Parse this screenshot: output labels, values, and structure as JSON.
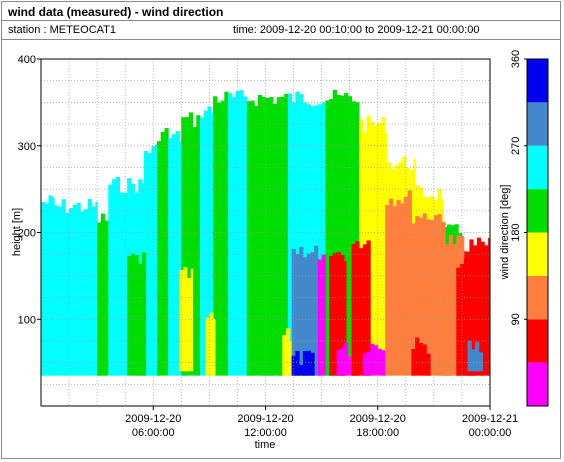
{
  "header": {
    "title": "wind data (measured) - wind direction",
    "station": "station : METEOCAT1",
    "time_range": "time: 2009-12-20 00:10:00 to 2009-12-21 00:00:00"
  },
  "chart_data": {
    "type": "heatmap",
    "xlabel": "time",
    "ylabel": "height [m]",
    "colorbar_label": "wind direction [deg]",
    "xlim": [
      0,
      24
    ],
    "ylim": [
      0,
      400
    ],
    "x_ticks": [
      {
        "value": 6,
        "line1": "2009-12-20",
        "line2": "06:00:00"
      },
      {
        "value": 12,
        "line1": "2009-12-20",
        "line2": "12:00:00"
      },
      {
        "value": 18,
        "line1": "2009-12-20",
        "line2": "18:00:00"
      },
      {
        "value": 24,
        "line1": "2009-12-21",
        "line2": "00:00:00"
      }
    ],
    "y_ticks": [
      100,
      200,
      300,
      400
    ],
    "colorbar": {
      "ticks": [
        90,
        180,
        270,
        360
      ],
      "min": 0,
      "max": 360,
      "bins": [
        {
          "from": 0,
          "to": 45,
          "color": "#ff00ff"
        },
        {
          "from": 45,
          "to": 90,
          "color": "#ff0000"
        },
        {
          "from": 90,
          "to": 135,
          "color": "#ff7f3f"
        },
        {
          "from": 135,
          "to": 180,
          "color": "#ffff00"
        },
        {
          "from": 180,
          "to": 225,
          "color": "#00dd00"
        },
        {
          "from": 225,
          "to": 270,
          "color": "#00ffff"
        },
        {
          "from": 270,
          "to": 315,
          "color": "#4488cc"
        },
        {
          "from": 315,
          "to": 360,
          "color": "#0000ee"
        }
      ]
    },
    "grid": true,
    "height_min": 35,
    "segments": [
      {
        "t0": 0.0,
        "t1": 0.7,
        "top": 245,
        "dir": 247
      },
      {
        "t0": 0.7,
        "t1": 3.0,
        "top": 240,
        "dir": 250
      },
      {
        "t0": 3.0,
        "t1": 3.6,
        "top": 225,
        "dir": 200
      },
      {
        "t0": 3.6,
        "t1": 5.5,
        "top": 265,
        "dir": 250
      },
      {
        "t0": 5.5,
        "t1": 6.2,
        "top": 305,
        "dir": 240
      },
      {
        "t0": 6.2,
        "t1": 6.8,
        "top": 325,
        "dir": 200
      },
      {
        "t0": 6.8,
        "t1": 7.5,
        "top": 320,
        "dir": 245
      },
      {
        "t0": 7.5,
        "t1": 8.5,
        "top": 340,
        "dir": 205
      },
      {
        "t0": 8.5,
        "t1": 9.2,
        "top": 350,
        "dir": 250
      },
      {
        "t0": 9.2,
        "t1": 10.0,
        "top": 365,
        "dir": 205
      },
      {
        "t0": 10.0,
        "t1": 11.0,
        "top": 365,
        "dir": 245
      },
      {
        "t0": 11.0,
        "t1": 12.0,
        "top": 365,
        "dir": 195
      },
      {
        "t0": 12.0,
        "t1": 13.2,
        "top": 365,
        "dir": 200
      },
      {
        "t0": 13.2,
        "t1": 13.8,
        "top": 365,
        "dir": 248
      },
      {
        "t0": 13.8,
        "t1": 15.2,
        "top": 365,
        "dir": 250
      },
      {
        "t0": 15.2,
        "t1": 17.0,
        "top": 365,
        "dir": 200
      },
      {
        "t0": 17.0,
        "t1": 18.5,
        "top": 335,
        "dir": 150
      },
      {
        "t0": 18.5,
        "t1": 20.0,
        "top": 290,
        "dir": 155
      },
      {
        "t0": 20.0,
        "t1": 21.5,
        "top": 255,
        "dir": 160
      },
      {
        "t0": 21.5,
        "t1": 22.5,
        "top": 210,
        "dir": 200
      },
      {
        "t0": 22.5,
        "t1": 24.0,
        "top": 195,
        "dir": 70
      }
    ],
    "patches": [
      {
        "t0": 4.6,
        "t1": 5.6,
        "bottom": 35,
        "top": 180,
        "dir": 200
      },
      {
        "t0": 7.4,
        "t1": 8.1,
        "bottom": 40,
        "top": 160,
        "dir": 160
      },
      {
        "t0": 8.8,
        "t1": 9.3,
        "bottom": 35,
        "top": 110,
        "dir": 160
      },
      {
        "t0": 12.9,
        "t1": 13.4,
        "bottom": 35,
        "top": 90,
        "dir": 160
      },
      {
        "t0": 13.4,
        "t1": 14.8,
        "bottom": 35,
        "top": 190,
        "dir": 290
      },
      {
        "t0": 13.4,
        "t1": 14.6,
        "bottom": 35,
        "top": 65,
        "dir": 330
      },
      {
        "t0": 14.8,
        "t1": 15.2,
        "bottom": 35,
        "top": 175,
        "dir": 20
      },
      {
        "t0": 15.4,
        "t1": 16.3,
        "bottom": 35,
        "top": 185,
        "dir": 70
      },
      {
        "t0": 15.8,
        "t1": 16.6,
        "bottom": 35,
        "top": 75,
        "dir": 20
      },
      {
        "t0": 16.6,
        "t1": 17.6,
        "bottom": 35,
        "top": 200,
        "dir": 70
      },
      {
        "t0": 17.2,
        "t1": 18.4,
        "bottom": 35,
        "top": 80,
        "dir": 20
      },
      {
        "t0": 18.4,
        "t1": 19.8,
        "bottom": 35,
        "top": 250,
        "dir": 110
      },
      {
        "t0": 19.8,
        "t1": 21.6,
        "bottom": 35,
        "top": 230,
        "dir": 110
      },
      {
        "t0": 19.8,
        "t1": 20.8,
        "bottom": 35,
        "top": 80,
        "dir": 70
      },
      {
        "t0": 21.6,
        "t1": 22.6,
        "bottom": 35,
        "top": 200,
        "dir": 110
      },
      {
        "t0": 22.2,
        "t1": 24.0,
        "bottom": 35,
        "top": 170,
        "dir": 70
      },
      {
        "t0": 22.8,
        "t1": 23.6,
        "bottom": 40,
        "top": 80,
        "dir": 300
      }
    ]
  }
}
